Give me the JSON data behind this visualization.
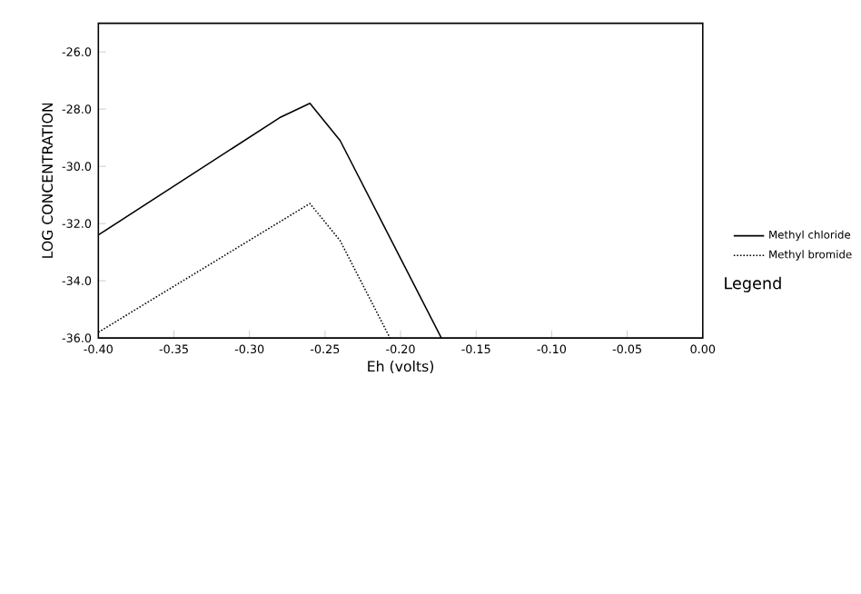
{
  "chart_data": {
    "type": "line",
    "xlabel": "Eh (volts)",
    "ylabel": "LOG CONCENTRATION",
    "legend_title": "Legend",
    "xlim": [
      -0.4,
      0.0
    ],
    "ylim": [
      -36,
      -25
    ],
    "xticks": [
      {
        "value": -0.4,
        "label": "-0.40"
      },
      {
        "value": -0.35,
        "label": "-0.35"
      },
      {
        "value": -0.3,
        "label": "-0.30"
      },
      {
        "value": -0.25,
        "label": "-0.25"
      },
      {
        "value": -0.2,
        "label": "-0.20"
      },
      {
        "value": -0.15,
        "label": "-0.15"
      },
      {
        "value": -0.1,
        "label": "-0.10"
      },
      {
        "value": -0.05,
        "label": "-0.05"
      },
      {
        "value": 0.0,
        "label": "0.00"
      }
    ],
    "yticks": [
      {
        "value": -36,
        "label": "-36.0"
      },
      {
        "value": -34,
        "label": "-34.0"
      },
      {
        "value": -32,
        "label": "-32.0"
      },
      {
        "value": -30,
        "label": "-30.0"
      },
      {
        "value": -28,
        "label": "-28.0"
      },
      {
        "value": -26,
        "label": "-26.0"
      }
    ],
    "grid": false,
    "legend": "right",
    "marker": "none",
    "series": [
      {
        "name": "Methyl chloride",
        "color": "#000000",
        "line_style": "solid",
        "x": [
          -0.4,
          -0.28,
          -0.26,
          -0.24,
          -0.173
        ],
        "values": [
          -32.4,
          -28.3,
          -27.8,
          -29.1,
          -36
        ]
      },
      {
        "name": "Methyl bromide",
        "color": "#000000",
        "line_style": "dotted",
        "x": [
          -0.4,
          -0.26,
          -0.24,
          -0.207
        ],
        "values": [
          -35.8,
          -31.3,
          -32.6,
          -36
        ]
      }
    ]
  }
}
